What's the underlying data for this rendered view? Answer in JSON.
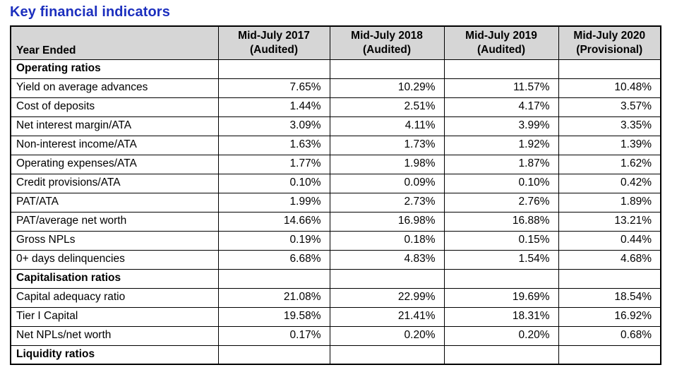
{
  "page_title": "Key financial indicators",
  "colors": {
    "title": "#1C2FBE",
    "header_bg": "#D6D6D6",
    "border": "#000000"
  },
  "table": {
    "corner_label": "Year Ended",
    "columns": [
      {
        "line1": "Mid-July 2017",
        "line2": "(Audited)"
      },
      {
        "line1": "Mid-July 2018",
        "line2": "(Audited)"
      },
      {
        "line1": "Mid-July 2019",
        "line2": "(Audited)"
      },
      {
        "line1": "Mid-July 2020",
        "line2": "(Provisional)"
      }
    ],
    "rows": [
      {
        "type": "section",
        "label": "Operating ratios",
        "values": [
          "",
          "",
          "",
          ""
        ]
      },
      {
        "type": "data",
        "label": "Yield on average advances",
        "values": [
          "7.65%",
          "10.29%",
          "11.57%",
          "10.48%"
        ]
      },
      {
        "type": "data",
        "label": "Cost of deposits",
        "values": [
          "1.44%",
          "2.51%",
          "4.17%",
          "3.57%"
        ]
      },
      {
        "type": "data",
        "label": "Net interest margin/ATA",
        "values": [
          "3.09%",
          "4.11%",
          "3.99%",
          "3.35%"
        ]
      },
      {
        "type": "data",
        "label": "Non-interest income/ATA",
        "values": [
          "1.63%",
          "1.73%",
          "1.92%",
          "1.39%"
        ]
      },
      {
        "type": "data",
        "label": "Operating expenses/ATA",
        "values": [
          "1.77%",
          "1.98%",
          "1.87%",
          "1.62%"
        ]
      },
      {
        "type": "data",
        "label": "Credit provisions/ATA",
        "values": [
          "0.10%",
          "0.09%",
          "0.10%",
          "0.42%"
        ]
      },
      {
        "type": "data",
        "label": "PAT/ATA",
        "values": [
          "1.99%",
          "2.73%",
          "2.76%",
          "1.89%"
        ]
      },
      {
        "type": "data",
        "label": "PAT/average net worth",
        "values": [
          "14.66%",
          "16.98%",
          "16.88%",
          "13.21%"
        ]
      },
      {
        "type": "data",
        "label": "Gross NPLs",
        "values": [
          "0.19%",
          "0.18%",
          "0.15%",
          "0.44%"
        ]
      },
      {
        "type": "data",
        "label": "0+ days delinquencies",
        "values": [
          "6.68%",
          "4.83%",
          "1.54%",
          "4.68%"
        ]
      },
      {
        "type": "section",
        "label": "Capitalisation ratios",
        "values": [
          "",
          "",
          "",
          ""
        ]
      },
      {
        "type": "data",
        "label": "Capital adequacy ratio",
        "values": [
          "21.08%",
          "22.99%",
          "19.69%",
          "18.54%"
        ]
      },
      {
        "type": "data",
        "label": "Tier I Capital",
        "values": [
          "19.58%",
          "21.41%",
          "18.31%",
          "16.92%"
        ]
      },
      {
        "type": "data",
        "label": "Net NPLs/net worth",
        "values": [
          "0.17%",
          "0.20%",
          "0.20%",
          "0.68%"
        ]
      },
      {
        "type": "section",
        "label": "Liquidity ratios",
        "values": [
          "",
          "",
          "",
          ""
        ]
      }
    ]
  }
}
